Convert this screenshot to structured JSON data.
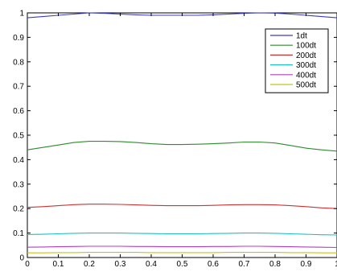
{
  "chart_data": {
    "type": "line",
    "title": "",
    "xlabel": "",
    "ylabel": "",
    "xlim": [
      0,
      1
    ],
    "ylim": [
      0,
      1
    ],
    "grid": false,
    "legend_position": "top-right",
    "x_ticks": [
      "0",
      "0.1",
      "0.2",
      "0.3",
      "0.4",
      "0.5",
      "0.6",
      "0.7",
      "0.8",
      "0.9",
      "1"
    ],
    "y_ticks": [
      "0",
      "0.1",
      "0.2",
      "0.3",
      "0.4",
      "0.5",
      "0.6",
      "0.7",
      "0.8",
      "0.9",
      "1"
    ],
    "x": [
      0,
      0.05,
      0.1,
      0.15,
      0.2,
      0.25,
      0.3,
      0.35,
      0.4,
      0.45,
      0.5,
      0.55,
      0.6,
      0.65,
      0.7,
      0.75,
      0.8,
      0.85,
      0.9,
      0.95,
      1.0
    ],
    "series": [
      {
        "name": "1dt",
        "color": "#3b3bc8",
        "values": [
          0.98,
          0.985,
          0.99,
          0.995,
          1.0,
          0.998,
          0.995,
          0.992,
          0.99,
          0.99,
          0.99,
          0.99,
          0.992,
          0.995,
          0.998,
          1.0,
          0.999,
          0.995,
          0.99,
          0.985,
          0.98
        ]
      },
      {
        "name": "100dt",
        "color": "#2e8b2e",
        "values": [
          0.44,
          0.45,
          0.46,
          0.47,
          0.475,
          0.475,
          0.474,
          0.47,
          0.465,
          0.462,
          0.462,
          0.463,
          0.465,
          0.468,
          0.472,
          0.472,
          0.468,
          0.458,
          0.447,
          0.44,
          0.435
        ]
      },
      {
        "name": "200dt",
        "color": "#cc3333",
        "values": [
          0.205,
          0.208,
          0.212,
          0.216,
          0.218,
          0.218,
          0.217,
          0.215,
          0.213,
          0.212,
          0.212,
          0.212,
          0.213,
          0.215,
          0.216,
          0.216,
          0.215,
          0.212,
          0.208,
          0.203,
          0.2
        ]
      },
      {
        "name": "300dt",
        "color": "#20c0c0",
        "values": [
          0.094,
          0.095,
          0.097,
          0.099,
          0.1,
          0.1,
          0.1,
          0.099,
          0.098,
          0.097,
          0.097,
          0.097,
          0.098,
          0.099,
          0.1,
          0.1,
          0.099,
          0.097,
          0.095,
          0.093,
          0.092
        ]
      },
      {
        "name": "400dt",
        "color": "#b040c0",
        "values": [
          0.042,
          0.043,
          0.044,
          0.045,
          0.046,
          0.046,
          0.046,
          0.045,
          0.045,
          0.044,
          0.044,
          0.044,
          0.045,
          0.045,
          0.046,
          0.046,
          0.045,
          0.044,
          0.043,
          0.042,
          0.041
        ]
      },
      {
        "name": "500dt",
        "color": "#c8c020",
        "values": [
          0.019,
          0.019,
          0.02,
          0.02,
          0.021,
          0.021,
          0.021,
          0.021,
          0.02,
          0.02,
          0.02,
          0.02,
          0.02,
          0.021,
          0.021,
          0.021,
          0.021,
          0.02,
          0.02,
          0.019,
          0.019
        ]
      }
    ]
  }
}
